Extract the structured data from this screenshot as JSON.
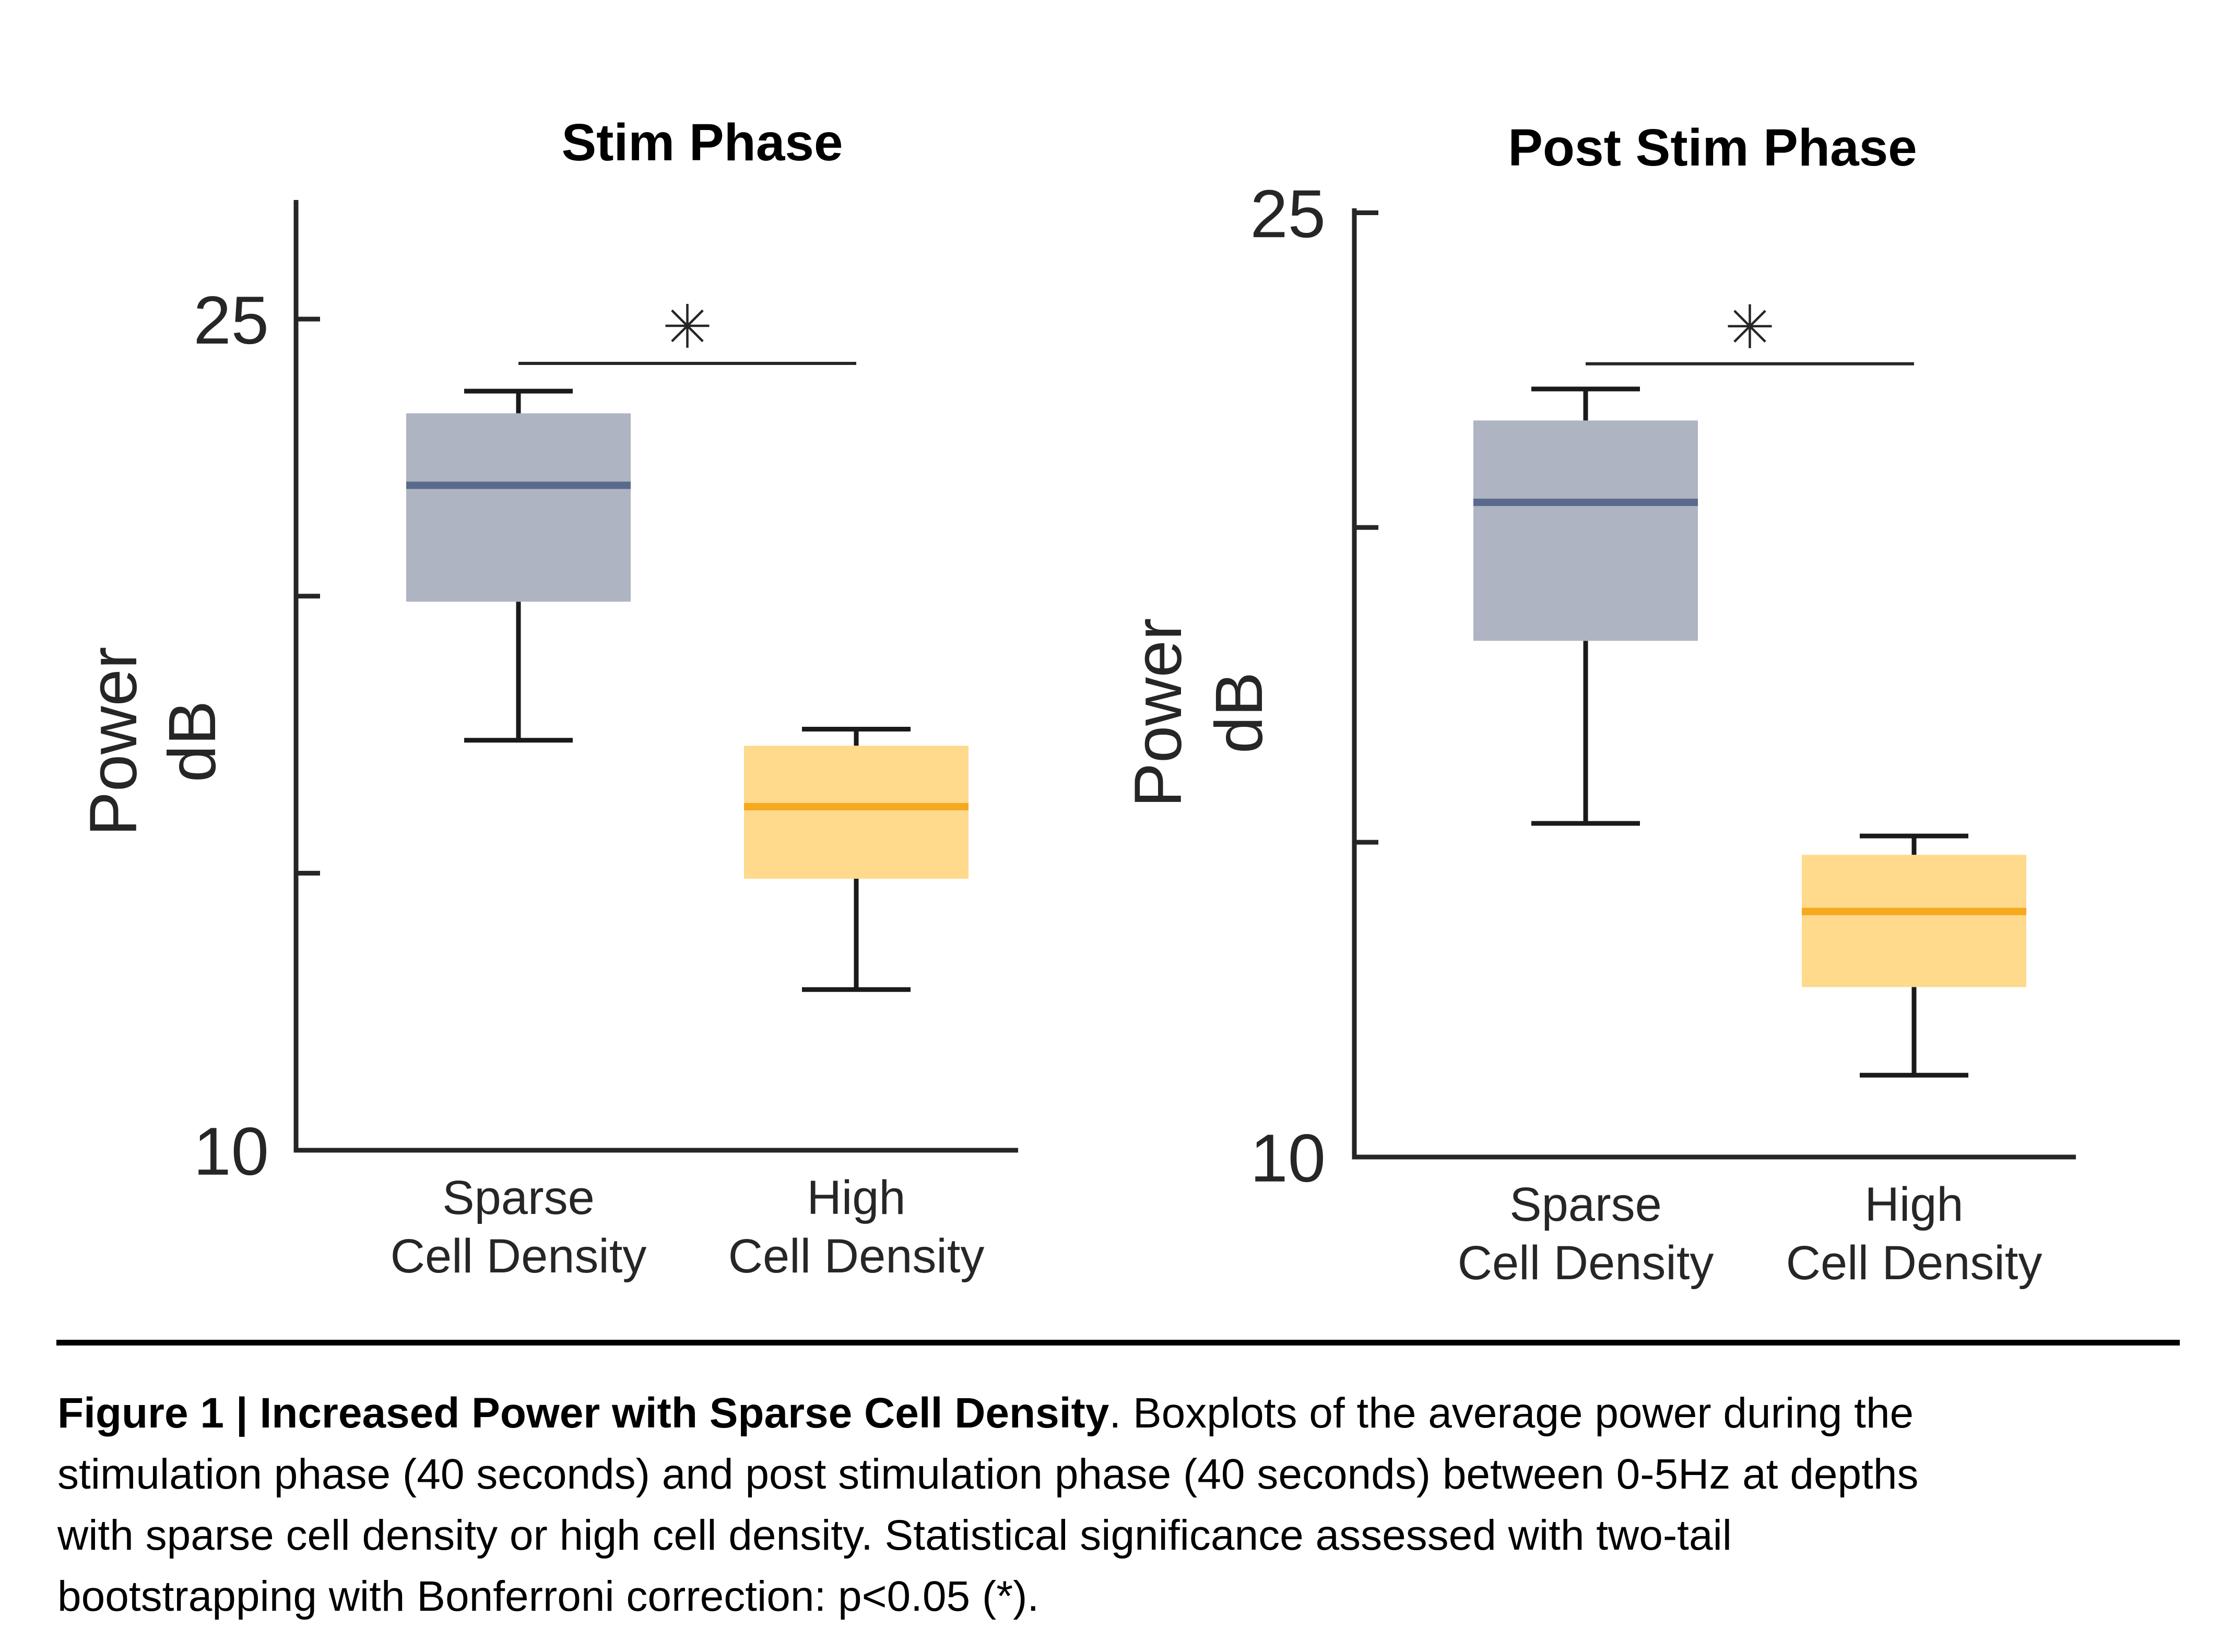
{
  "figure": {
    "caption": {
      "bold_prefix": "Figure 1 | Increased Power with Sparse Cell Density",
      "lines": [
        ". Boxplots of the average power during the",
        "stimulation phase (40 seconds) and post stimulation phase (40 seconds) between 0-5Hz at depths",
        "with sparse cell density or high cell density. Statistical significance assessed with two-tail",
        "bootstrapping with Bonferroni correction: p<0.05 (*)."
      ]
    }
  },
  "colors": {
    "axis": "#262626",
    "whisker": "#1a1a1a",
    "title_text": "#000000",
    "sparse_box_fill": "#AEB4C2",
    "sparse_median": "#5A6A8C",
    "high_box_fill": "#FFD98C",
    "high_median": "#F6A81E",
    "background": "#ffffff"
  },
  "chart_data": [
    {
      "type": "box",
      "title": "Stim Phase",
      "ylabel_lines": [
        "Power",
        "dB"
      ],
      "ylim": [
        10,
        27.15
      ],
      "yticks": [
        {
          "value": 25,
          "label": "25",
          "mark": true
        },
        {
          "value": 20,
          "label": "",
          "mark": true
        },
        {
          "value": 15,
          "label": "",
          "mark": true
        },
        {
          "value": 10,
          "label": "10",
          "mark": false
        }
      ],
      "boxes": [
        {
          "category_lines": [
            "Sparse",
            "Cell Density"
          ],
          "whisker_low": 17.4,
          "q1": 19.9,
          "median": 22.0,
          "q3": 23.3,
          "whisker_high": 23.7,
          "box_color": "#AEB4C2",
          "median_color": "#5A6A8C"
        },
        {
          "category_lines": [
            "High",
            "Cell Density"
          ],
          "whisker_low": 12.9,
          "q1": 14.9,
          "median": 16.2,
          "q3": 17.3,
          "whisker_high": 17.6,
          "box_color": "#FFD98C",
          "median_color": "#F6A81E"
        }
      ],
      "significance": {
        "label": "*",
        "bar_value": 24.2,
        "between": [
          0,
          1
        ]
      }
    },
    {
      "type": "box",
      "title": "Post Stim Phase",
      "ylabel_lines": [
        "Power",
        "dB"
      ],
      "ylim": [
        10,
        25.07
      ],
      "yticks": [
        {
          "value": 25,
          "label": "25",
          "mark": true
        },
        {
          "value": 20,
          "label": "",
          "mark": true
        },
        {
          "value": 15,
          "label": "",
          "mark": true
        },
        {
          "value": 10,
          "label": "10",
          "mark": false
        }
      ],
      "boxes": [
        {
          "category_lines": [
            "Sparse",
            "Cell Density"
          ],
          "whisker_low": 15.3,
          "q1": 18.2,
          "median": 20.4,
          "q3": 21.7,
          "whisker_high": 22.2,
          "box_color": "#AEB4C2",
          "median_color": "#5A6A8C"
        },
        {
          "category_lines": [
            "High",
            "Cell Density"
          ],
          "whisker_low": 11.3,
          "q1": 12.7,
          "median": 13.9,
          "q3": 14.8,
          "whisker_high": 15.1,
          "box_color": "#FFD98C",
          "median_color": "#F6A81E"
        }
      ],
      "significance": {
        "label": "*",
        "bar_value": 22.6,
        "between": [
          0,
          1
        ]
      }
    }
  ]
}
